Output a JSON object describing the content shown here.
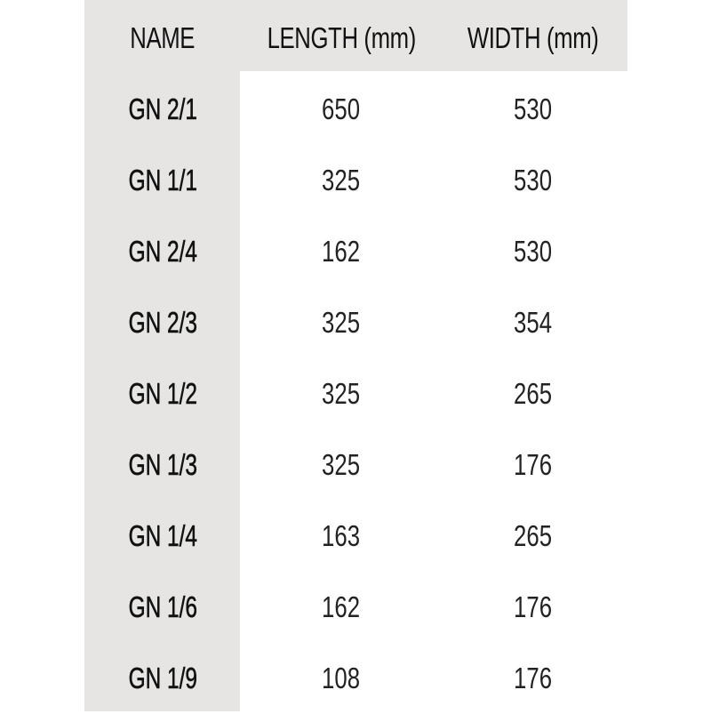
{
  "table": {
    "headers": [
      "NAME",
      "LENGTH (mm)",
      "WIDTH (mm)"
    ],
    "rows": [
      [
        "GN 2/1",
        "650",
        "530"
      ],
      [
        "GN 1/1",
        "325",
        "530"
      ],
      [
        "GN 2/4",
        "162",
        "530"
      ],
      [
        "GN 2/3",
        "325",
        "354"
      ],
      [
        "GN 1/2",
        "325",
        "265"
      ],
      [
        "GN 1/3",
        "325",
        "176"
      ],
      [
        "GN 1/4",
        "163",
        "265"
      ],
      [
        "GN 1/6",
        "162",
        "176"
      ],
      [
        "GN 1/9",
        "108",
        "176"
      ]
    ],
    "colors": {
      "header_background": "#e6e5e4",
      "body_background": "#ffffff",
      "text": "#111111"
    }
  }
}
